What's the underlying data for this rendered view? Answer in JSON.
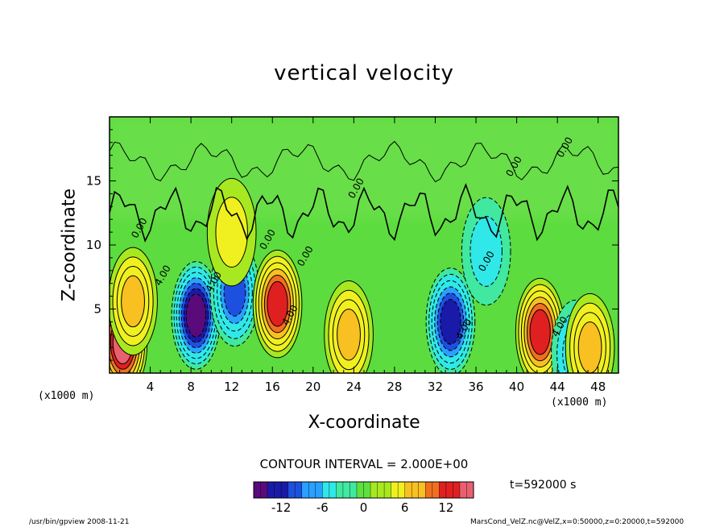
{
  "chart_data": {
    "type": "heatmap",
    "title": "vertical velocity",
    "xlabel": "X-coordinate",
    "ylabel": "Z-coordinate",
    "x_unit": "(x1000 m)",
    "xlim": [
      0,
      50
    ],
    "ylim": [
      0,
      20
    ],
    "x_ticks": [
      "4",
      "8",
      "12",
      "16",
      "20",
      "24",
      "28",
      "32",
      "36",
      "40",
      "44",
      "48"
    ],
    "y_ticks": [
      "5",
      "10",
      "15"
    ],
    "contour_interval_text": "CONTOUR INTERVAL = 2.000E+00",
    "contour_labels": [
      "0.00",
      "0.00",
      "0.00",
      "0.00",
      "0.00",
      "0.00",
      "0.00",
      "4.00",
      "4.00",
      "4.00",
      "4.00",
      "-4.00"
    ],
    "colorbar": {
      "range": [
        -16,
        16
      ],
      "tick_labels": [
        "-12",
        "-6",
        "0",
        "6",
        "12"
      ],
      "tick_values": [
        -12,
        -6,
        0,
        6,
        12
      ],
      "colors": [
        "#5a0a7a",
        "#1a1aa8",
        "#1e50e0",
        "#2aa0ff",
        "#30e8e8",
        "#40e8a0",
        "#60e040",
        "#a8e820",
        "#f0f020",
        "#f8c020",
        "#f07020",
        "#e02020",
        "#e86070"
      ]
    },
    "blobs": [
      {
        "x": 1.3,
        "z": 2.4,
        "peak": 14
      },
      {
        "x": 2.3,
        "z": 5.6,
        "peak": 8
      },
      {
        "x": 8.5,
        "z": 4.5,
        "peak": -14
      },
      {
        "x": 12.3,
        "z": 6.3,
        "peak": -10
      },
      {
        "x": 16.5,
        "z": 5.4,
        "peak": 12
      },
      {
        "x": 23.5,
        "z": 3.0,
        "peak": 8
      },
      {
        "x": 33.5,
        "z": 4.0,
        "peak": -12
      },
      {
        "x": 42.3,
        "z": 3.2,
        "peak": 12
      },
      {
        "x": 45.8,
        "z": 1.5,
        "peak": -6
      },
      {
        "x": 47.2,
        "z": 2.0,
        "peak": 8
      },
      {
        "x": 12.0,
        "z": 11.0,
        "peak": 4
      },
      {
        "x": 37.0,
        "z": 9.5,
        "peak": -4
      }
    ]
  },
  "time_label": "t=592000  s",
  "footer": {
    "left": "/usr/bin/gpview  2008-11-21",
    "right": "MarsCond_VelZ.nc@VelZ,x=0:50000,z=0:20000,t=592000"
  },
  "colors": {
    "background": "#5cdc3e",
    "frame": "#000000"
  }
}
